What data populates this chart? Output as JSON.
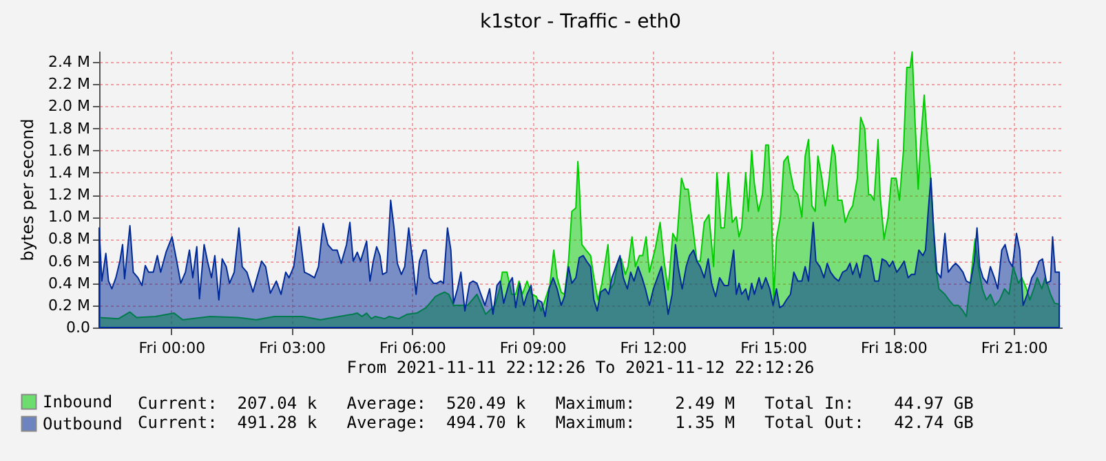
{
  "chart_data": {
    "type": "area",
    "title": "k1stor - Traffic - eth0",
    "ylabel": "bytes per second",
    "xlim": [
      "2021-11-11T22:12",
      "2021-11-12T22:12"
    ],
    "xticks": [
      {
        "value": "2021-11-12T00:00",
        "label": "Fri 00:00"
      },
      {
        "value": "2021-11-12T03:00",
        "label": "Fri 03:00"
      },
      {
        "value": "2021-11-12T06:00",
        "label": "Fri 06:00"
      },
      {
        "value": "2021-11-12T09:00",
        "label": "Fri 09:00"
      },
      {
        "value": "2021-11-12T12:00",
        "label": "Fri 12:00"
      },
      {
        "value": "2021-11-12T15:00",
        "label": "Fri 15:00"
      },
      {
        "value": "2021-11-12T18:00",
        "label": "Fri 18:00"
      },
      {
        "value": "2021-11-12T21:00",
        "label": "Fri 21:00"
      }
    ],
    "ylim": [
      0,
      2.5
    ],
    "yticks": [
      {
        "value": 0,
        "label": "0.0"
      },
      {
        "value": 0.2,
        "label": "0.2 M"
      },
      {
        "value": 0.4,
        "label": "0.4 M"
      },
      {
        "value": 0.6,
        "label": "0.6 M"
      },
      {
        "value": 0.8,
        "label": "0.8 M"
      },
      {
        "value": 1.0,
        "label": "1.0 M"
      },
      {
        "value": 1.2,
        "label": "1.2 M"
      },
      {
        "value": 1.4,
        "label": "1.4 M"
      },
      {
        "value": 1.6,
        "label": "1.6 M"
      },
      {
        "value": 1.8,
        "label": "1.8 M"
      },
      {
        "value": 2.0,
        "label": "2.0 M"
      },
      {
        "value": 2.2,
        "label": "2.2 M"
      },
      {
        "value": 2.4,
        "label": "2.4 M"
      }
    ],
    "grid": true,
    "legend": "bottom left",
    "annotations": [
      "From 2021-11-11 22:12:26 To 2021-11-12 22:12:26",
      "Current:  207.04 k   Average:  520.49 k   Maximum:    2.49 M   Total In:    44.97 GB",
      "Current:  491.28 k   Average:  494.70 k   Maximum:    1.35 M   Total Out:   42.74 GB"
    ],
    "series": [
      {
        "name": "Inbound",
        "color": "#00cc00",
        "x": [
          "2021-11-11T22:12",
          "2021-11-11T22:41",
          "2021-11-11T22:58",
          "2021-11-11T23:08",
          "2021-11-11T23:36",
          "2021-11-12T00:04",
          "2021-11-12T00:17",
          "2021-11-12T00:58",
          "2021-11-12T01:40",
          "2021-11-12T02:07",
          "2021-11-12T02:34",
          "2021-11-12T03:16",
          "2021-11-12T03:43",
          "2021-11-12T04:11",
          "2021-11-12T04:31",
          "2021-11-12T04:38",
          "2021-11-12T04:45",
          "2021-11-12T04:52",
          "2021-11-12T04:59",
          "2021-11-12T05:05",
          "2021-11-12T05:19",
          "2021-11-12T05:26",
          "2021-11-12T05:40",
          "2021-11-12T05:53",
          "2021-11-12T06:07",
          "2021-11-12T06:21",
          "2021-11-12T06:35",
          "2021-11-12T06:41",
          "2021-11-12T06:49",
          "2021-11-12T06:55",
          "2021-11-12T07:02",
          "2021-11-12T07:09",
          "2021-11-12T07:23",
          "2021-11-12T07:37",
          "2021-11-12T07:50",
          "2021-11-12T08:04",
          "2021-11-12T08:11",
          "2021-11-12T08:15",
          "2021-11-12T08:22",
          "2021-11-12T08:29",
          "2021-11-12T08:35",
          "2021-11-12T08:40",
          "2021-11-12T08:45",
          "2021-11-12T08:52",
          "2021-11-12T08:59",
          "2021-11-12T09:06",
          "2021-11-12T09:13",
          "2021-11-12T09:19",
          "2021-11-12T09:26",
          "2021-11-12T09:32",
          "2021-11-12T09:37",
          "2021-11-12T09:43",
          "2021-11-12T09:48",
          "2021-11-12T09:54",
          "2021-11-12T09:59",
          "2021-11-12T10:05",
          "2021-11-12T10:08",
          "2021-11-12T10:10",
          "2021-11-12T10:14",
          "2021-11-12T10:20",
          "2021-11-12T10:27",
          "2021-11-12T10:32",
          "2021-11-12T10:38",
          "2021-11-12T10:44",
          "2021-11-12T10:53",
          "2021-11-12T10:57",
          "2021-11-12T11:02",
          "2021-11-12T11:08",
          "2021-11-12T11:13",
          "2021-11-12T11:19",
          "2021-11-12T11:23",
          "2021-11-12T11:29",
          "2021-11-12T11:34",
          "2021-11-12T11:40",
          "2021-11-12T11:45",
          "2021-11-12T11:50",
          "2021-11-12T11:55",
          "2021-11-12T12:04",
          "2021-11-12T12:11",
          "2021-11-12T12:17",
          "2021-11-12T12:23",
          "2021-11-12T12:30",
          "2021-11-12T12:36",
          "2021-11-12T12:43",
          "2021-11-12T12:48",
          "2021-11-12T12:53",
          "2021-11-12T12:59",
          "2021-11-12T13:06",
          "2021-11-12T13:11",
          "2021-11-12T13:17",
          "2021-11-12T13:24",
          "2021-11-12T13:31",
          "2021-11-12T13:36",
          "2021-11-12T13:42",
          "2021-11-12T13:47",
          "2021-11-12T13:53",
          "2021-11-12T13:59",
          "2021-11-12T14:05",
          "2021-11-12T14:09",
          "2021-11-12T14:13",
          "2021-11-12T14:19",
          "2021-11-12T14:23",
          "2021-11-12T14:28",
          "2021-11-12T14:32",
          "2021-11-12T14:38",
          "2021-11-12T14:44",
          "2021-11-12T14:49",
          "2021-11-12T14:53",
          "2021-11-12T14:57",
          "2021-11-12T15:01",
          "2021-11-12T15:05",
          "2021-11-12T15:11",
          "2021-11-12T15:16",
          "2021-11-12T15:22",
          "2021-11-12T15:26",
          "2021-11-12T15:31",
          "2021-11-12T15:37",
          "2021-11-12T15:43",
          "2021-11-12T15:48",
          "2021-11-12T15:53",
          "2021-11-12T15:58",
          "2021-11-12T16:03",
          "2021-11-12T16:07",
          "2021-11-12T16:13",
          "2021-11-12T16:18",
          "2021-11-12T16:23",
          "2021-11-12T16:29",
          "2021-11-12T16:33",
          "2021-11-12T16:37",
          "2021-11-12T16:43",
          "2021-11-12T16:48",
          "2021-11-12T16:54",
          "2021-11-12T16:59",
          "2021-11-12T17:06",
          "2021-11-12T17:11",
          "2021-11-12T17:17",
          "2021-11-12T17:23",
          "2021-11-12T17:26",
          "2021-11-12T17:31",
          "2021-11-12T17:37",
          "2021-11-12T17:40",
          "2021-11-12T17:46",
          "2021-11-12T17:52",
          "2021-11-12T17:57",
          "2021-11-12T18:04",
          "2021-11-12T18:09",
          "2021-11-12T18:15",
          "2021-11-12T18:20",
          "2021-11-12T18:25",
          "2021-11-12T18:28",
          "2021-11-12T18:32",
          "2021-11-12T18:37",
          "2021-11-12T18:41",
          "2021-11-12T18:46",
          "2021-11-12T18:50",
          "2021-11-12T18:55",
          "2021-11-12T18:59",
          "2021-11-12T19:03",
          "2021-11-12T19:08",
          "2021-11-12T19:17",
          "2021-11-12T19:23",
          "2021-11-12T19:30",
          "2021-11-12T19:37",
          "2021-11-12T19:44",
          "2021-11-12T19:49",
          "2021-11-12T19:55",
          "2021-11-12T20:02",
          "2021-11-12T20:07",
          "2021-11-12T20:13",
          "2021-11-12T20:19",
          "2021-11-12T20:25",
          "2021-11-12T20:32",
          "2021-11-12T20:39",
          "2021-11-12T20:46",
          "2021-11-12T20:53",
          "2021-11-12T20:59",
          "2021-11-12T21:07",
          "2021-11-12T21:12",
          "2021-11-12T21:19",
          "2021-11-12T21:24",
          "2021-11-12T21:30",
          "2021-11-12T21:35",
          "2021-11-12T21:42",
          "2021-11-12T21:47",
          "2021-11-12T21:55",
          "2021-11-12T22:01",
          "2021-11-12T22:08"
        ],
        "values": [
          0.09,
          0.08,
          0.14,
          0.09,
          0.1,
          0.13,
          0.07,
          0.1,
          0.09,
          0.07,
          0.1,
          0.1,
          0.07,
          0.1,
          0.12,
          0.13,
          0.1,
          0.13,
          0.08,
          0.1,
          0.08,
          0.1,
          0.08,
          0.12,
          0.13,
          0.18,
          0.28,
          0.3,
          0.32,
          0.3,
          0.2,
          0.2,
          0.2,
          0.3,
          0.12,
          0.2,
          0.35,
          0.5,
          0.5,
          0.3,
          0.3,
          0.42,
          0.3,
          0.42,
          0.3,
          0.28,
          0.15,
          0.25,
          0.38,
          0.7,
          0.45,
          0.32,
          0.3,
          0.6,
          1.05,
          1.08,
          1.5,
          1.3,
          0.75,
          0.7,
          0.65,
          0.45,
          0.25,
          0.4,
          0.75,
          0.35,
          0.4,
          0.6,
          0.62,
          0.48,
          0.55,
          0.82,
          0.55,
          0.65,
          0.65,
          0.82,
          0.5,
          0.72,
          0.95,
          0.6,
          0.34,
          0.85,
          0.78,
          1.35,
          1.25,
          1.25,
          0.95,
          0.6,
          0.6,
          0.95,
          1.02,
          0.55,
          1.4,
          0.9,
          0.9,
          1.4,
          0.95,
          1.0,
          0.82,
          0.9,
          1.4,
          1.05,
          1.6,
          1.3,
          1.05,
          1.2,
          1.65,
          1.65,
          1.2,
          0.25,
          0.8,
          1.0,
          1.5,
          1.55,
          1.4,
          1.25,
          1.2,
          1.0,
          1.55,
          1.7,
          1.1,
          1.05,
          1.55,
          1.35,
          1.1,
          1.3,
          1.65,
          1.55,
          1.15,
          1.15,
          0.95,
          1.05,
          1.1,
          1.35,
          1.9,
          1.8,
          1.2,
          1.2,
          1.15,
          1.7,
          1.2,
          0.8,
          1.0,
          1.35,
          1.35,
          1.15,
          1.6,
          2.35,
          2.35,
          2.49,
          1.9,
          1.25,
          1.7,
          2.1,
          1.75,
          1.4,
          1.0,
          0.55,
          0.35,
          0.3,
          0.25,
          0.2,
          0.2,
          0.15,
          0.1,
          0.4,
          0.8,
          0.55,
          0.35,
          0.25,
          0.3,
          0.2,
          0.25,
          0.35,
          0.3,
          0.55,
          0.4,
          0.45,
          0.35,
          0.25,
          0.35,
          0.45,
          0.35,
          0.45,
          0.3,
          0.22,
          0.21
        ]
      },
      {
        "name": "Outbound",
        "color": "#002a97",
        "x": [
          "2021-11-11T22:12",
          "2021-11-11T22:16",
          "2021-11-11T22:22",
          "2021-11-11T22:26",
          "2021-11-11T22:31",
          "2021-11-11T22:37",
          "2021-11-11T22:43",
          "2021-11-11T22:47",
          "2021-11-11T22:50",
          "2021-11-11T22:58",
          "2021-11-11T23:03",
          "2021-11-11T23:10",
          "2021-11-11T23:16",
          "2021-11-11T23:21",
          "2021-11-11T23:26",
          "2021-11-11T23:33",
          "2021-11-11T23:39",
          "2021-11-11T23:44",
          "2021-11-11T23:52",
          "2021-11-12T00:01",
          "2021-11-12T00:08",
          "2021-11-12T00:14",
          "2021-11-12T00:21",
          "2021-11-12T00:27",
          "2021-11-12T00:32",
          "2021-11-12T00:38",
          "2021-11-12T00:42",
          "2021-11-12T00:49",
          "2021-11-12T00:54",
          "2021-11-12T01:00",
          "2021-11-12T01:05",
          "2021-11-12T01:11",
          "2021-11-12T01:16",
          "2021-11-12T01:22",
          "2021-11-12T01:27",
          "2021-11-12T01:34",
          "2021-11-12T01:41",
          "2021-11-12T01:46",
          "2021-11-12T01:53",
          "2021-11-12T02:02",
          "2021-11-12T02:08",
          "2021-11-12T02:15",
          "2021-11-12T02:21",
          "2021-11-12T02:28",
          "2021-11-12T02:37",
          "2021-11-12T02:44",
          "2021-11-12T02:51",
          "2021-11-12T02:56",
          "2021-11-12T03:03",
          "2021-11-12T03:11",
          "2021-11-12T03:19",
          "2021-11-12T03:26",
          "2021-11-12T03:34",
          "2021-11-12T03:40",
          "2021-11-12T03:47",
          "2021-11-12T03:54",
          "2021-11-12T04:01",
          "2021-11-12T04:08",
          "2021-11-12T04:14",
          "2021-11-12T04:22",
          "2021-11-12T04:27",
          "2021-11-12T04:32",
          "2021-11-12T04:38",
          "2021-11-12T04:43",
          "2021-11-12T04:47",
          "2021-11-12T04:52",
          "2021-11-12T04:57",
          "2021-11-12T05:02",
          "2021-11-12T05:07",
          "2021-11-12T05:12",
          "2021-11-12T05:16",
          "2021-11-12T05:22",
          "2021-11-12T05:28",
          "2021-11-12T05:33",
          "2021-11-12T05:38",
          "2021-11-12T05:44",
          "2021-11-12T05:49",
          "2021-11-12T05:55",
          "2021-11-12T06:01",
          "2021-11-12T06:06",
          "2021-11-12T06:11",
          "2021-11-12T06:17",
          "2021-11-12T06:21",
          "2021-11-12T06:26",
          "2021-11-12T06:32",
          "2021-11-12T06:37",
          "2021-11-12T06:43",
          "2021-11-12T06:47",
          "2021-11-12T06:53",
          "2021-11-12T06:58",
          "2021-11-12T07:02",
          "2021-11-12T07:08",
          "2021-11-12T07:13",
          "2021-11-12T07:19",
          "2021-11-12T07:26",
          "2021-11-12T07:31",
          "2021-11-12T07:37",
          "2021-11-12T07:43",
          "2021-11-12T07:49",
          "2021-11-12T07:56",
          "2021-11-12T08:01",
          "2021-11-12T08:07",
          "2021-11-12T08:12",
          "2021-11-12T08:17",
          "2021-11-12T08:25",
          "2021-11-12T08:30",
          "2021-11-12T08:35",
          "2021-11-12T08:41",
          "2021-11-12T08:47",
          "2021-11-12T08:52",
          "2021-11-12T08:58",
          "2021-11-12T09:03",
          "2021-11-12T09:08",
          "2021-11-12T09:14",
          "2021-11-12T09:19",
          "2021-11-12T09:25",
          "2021-11-12T09:31",
          "2021-11-12T09:37",
          "2021-11-12T09:43",
          "2021-11-12T09:48",
          "2021-11-12T09:54",
          "2021-11-12T09:59",
          "2021-11-12T10:05",
          "2021-11-12T10:10",
          "2021-11-12T10:16",
          "2021-11-12T10:21",
          "2021-11-12T10:27",
          "2021-11-12T10:32",
          "2021-11-12T10:37",
          "2021-11-12T10:42",
          "2021-11-12T10:49",
          "2021-11-12T10:54",
          "2021-11-12T10:59",
          "2021-11-12T11:05",
          "2021-11-12T11:11",
          "2021-11-12T11:16",
          "2021-11-12T11:22",
          "2021-11-12T11:27",
          "2021-11-12T11:32",
          "2021-11-12T11:38",
          "2021-11-12T11:44",
          "2021-11-12T11:49",
          "2021-11-12T11:55",
          "2021-11-12T12:01",
          "2021-11-12T12:07",
          "2021-11-12T12:13",
          "2021-11-12T12:18",
          "2021-11-12T12:23",
          "2021-11-12T12:29",
          "2021-11-12T12:34",
          "2021-11-12T12:38",
          "2021-11-12T12:44",
          "2021-11-12T12:50",
          "2021-11-12T12:55",
          "2021-11-12T13:01",
          "2021-11-12T13:06",
          "2021-11-12T13:11",
          "2021-11-12T13:17",
          "2021-11-12T13:23",
          "2021-11-12T13:28",
          "2021-11-12T13:34",
          "2021-11-12T13:40",
          "2021-11-12T13:47",
          "2021-11-12T13:53",
          "2021-11-12T14:01",
          "2021-11-12T14:05",
          "2021-11-12T14:09",
          "2021-11-12T14:13",
          "2021-11-12T14:19",
          "2021-11-12T14:23",
          "2021-11-12T14:28",
          "2021-11-12T14:32",
          "2021-11-12T14:39",
          "2021-11-12T14:43",
          "2021-11-12T14:49",
          "2021-11-12T14:55",
          "2021-11-12T15:00",
          "2021-11-12T15:05",
          "2021-11-12T15:10",
          "2021-11-12T15:15",
          "2021-11-12T15:20",
          "2021-11-12T15:26",
          "2021-11-12T15:31",
          "2021-11-12T15:37",
          "2021-11-12T15:43",
          "2021-11-12T15:48",
          "2021-11-12T15:53",
          "2021-11-12T16:00",
          "2021-11-12T16:04",
          "2021-11-12T16:10",
          "2021-11-12T16:16",
          "2021-11-12T16:21",
          "2021-11-12T16:26",
          "2021-11-12T16:32",
          "2021-11-12T16:38",
          "2021-11-12T16:44",
          "2021-11-12T16:50",
          "2021-11-12T16:55",
          "2021-11-12T16:59",
          "2021-11-12T17:05",
          "2021-11-12T17:10",
          "2021-11-12T17:16",
          "2021-11-12T17:21",
          "2021-11-12T17:26",
          "2021-11-12T17:32",
          "2021-11-12T17:38",
          "2021-11-12T17:43",
          "2021-11-12T17:49",
          "2021-11-12T17:54",
          "2021-11-12T17:59",
          "2021-11-12T18:05",
          "2021-11-12T18:11",
          "2021-11-12T18:16",
          "2021-11-12T18:22",
          "2021-11-12T18:27",
          "2021-11-12T18:32",
          "2021-11-12T18:38",
          "2021-11-12T18:44",
          "2021-11-12T18:48",
          "2021-11-12T18:52",
          "2021-11-12T18:56",
          "2021-11-12T19:00",
          "2021-11-12T19:05",
          "2021-11-12T19:11",
          "2021-11-12T19:17",
          "2021-11-12T19:22",
          "2021-11-12T19:28",
          "2021-11-12T19:33",
          "2021-11-12T19:38",
          "2021-11-12T19:44",
          "2021-11-12T19:49",
          "2021-11-12T19:55",
          "2021-11-12T20:01",
          "2021-11-12T20:05",
          "2021-11-12T20:09",
          "2021-11-12T20:14",
          "2021-11-12T20:20",
          "2021-11-12T20:25",
          "2021-11-12T20:31",
          "2021-11-12T20:36",
          "2021-11-12T20:42",
          "2021-11-12T20:47",
          "2021-11-12T20:53",
          "2021-11-12T20:58",
          "2021-11-12T21:04",
          "2021-11-12T21:09",
          "2021-11-12T21:14",
          "2021-11-12T21:20",
          "2021-11-12T21:27",
          "2021-11-12T21:32",
          "2021-11-12T21:38",
          "2021-11-12T21:43",
          "2021-11-12T21:49",
          "2021-11-12T21:55",
          "2021-11-12T21:58",
          "2021-11-12T22:02",
          "2021-11-12T22:08"
        ],
        "values": [
          0.9,
          0.42,
          0.67,
          0.42,
          0.35,
          0.45,
          0.6,
          0.75,
          0.44,
          0.92,
          0.5,
          0.45,
          0.38,
          0.56,
          0.5,
          0.5,
          0.65,
          0.5,
          0.68,
          0.82,
          0.6,
          0.4,
          0.5,
          0.7,
          0.45,
          0.73,
          0.26,
          0.75,
          0.6,
          0.45,
          0.65,
          0.25,
          0.62,
          0.55,
          0.4,
          0.5,
          0.9,
          0.55,
          0.5,
          0.32,
          0.45,
          0.6,
          0.55,
          0.31,
          0.42,
          0.3,
          0.5,
          0.45,
          0.55,
          0.91,
          0.5,
          0.48,
          0.45,
          0.55,
          0.94,
          0.75,
          0.7,
          0.7,
          0.58,
          0.75,
          0.95,
          0.6,
          0.68,
          0.6,
          0.68,
          0.78,
          0.42,
          0.6,
          0.73,
          0.65,
          0.48,
          0.5,
          1.15,
          0.9,
          0.58,
          0.48,
          0.55,
          0.9,
          0.6,
          0.3,
          0.6,
          0.7,
          0.7,
          0.45,
          0.4,
          0.4,
          0.42,
          0.4,
          0.9,
          0.7,
          0.22,
          0.35,
          0.5,
          0.15,
          0.4,
          0.42,
          0.4,
          0.3,
          0.2,
          0.35,
          0.12,
          0.38,
          0.42,
          0.22,
          0.4,
          0.45,
          0.18,
          0.4,
          0.2,
          0.3,
          0.38,
          0.15,
          0.25,
          0.23,
          0.1,
          0.35,
          0.45,
          0.35,
          0.2,
          0.28,
          0.55,
          0.4,
          0.45,
          0.63,
          0.65,
          0.6,
          0.55,
          0.25,
          0.15,
          0.32,
          0.35,
          0.3,
          0.45,
          0.55,
          0.65,
          0.45,
          0.35,
          0.5,
          0.42,
          0.55,
          0.45,
          0.35,
          0.2,
          0.35,
          0.45,
          0.55,
          0.35,
          0.12,
          0.3,
          0.75,
          0.55,
          0.35,
          0.55,
          0.65,
          0.7,
          0.6,
          0.55,
          0.45,
          0.62,
          0.4,
          0.28,
          0.45,
          0.38,
          0.38,
          0.7,
          0.3,
          0.4,
          0.3,
          0.35,
          0.25,
          0.4,
          0.3,
          0.45,
          0.35,
          0.45,
          0.35,
          0.2,
          0.35,
          0.18,
          0.2,
          0.25,
          0.3,
          0.5,
          0.42,
          0.42,
          0.55,
          0.42,
          0.95,
          0.6,
          0.55,
          0.45,
          0.58,
          0.5,
          0.45,
          0.42,
          0.5,
          0.52,
          0.58,
          0.48,
          0.58,
          0.45,
          0.65,
          0.65,
          0.62,
          0.42,
          0.42,
          0.62,
          0.6,
          0.55,
          0.6,
          0.5,
          0.55,
          0.6,
          0.45,
          0.48,
          0.48,
          0.7,
          0.65,
          0.7,
          1.05,
          1.35,
          0.9,
          0.5,
          0.45,
          0.85,
          0.5,
          0.55,
          0.58,
          0.55,
          0.5,
          0.42,
          0.4,
          0.6,
          0.9,
          0.55,
          0.45,
          0.4,
          0.55,
          0.45,
          0.35,
          0.7,
          0.75,
          0.6,
          0.55,
          0.85,
          0.7,
          0.2,
          0.3,
          0.45,
          0.5,
          0.6,
          0.62,
          0.4,
          0.42,
          0.82,
          0.5,
          0.5
        ]
      }
    ]
  }
}
